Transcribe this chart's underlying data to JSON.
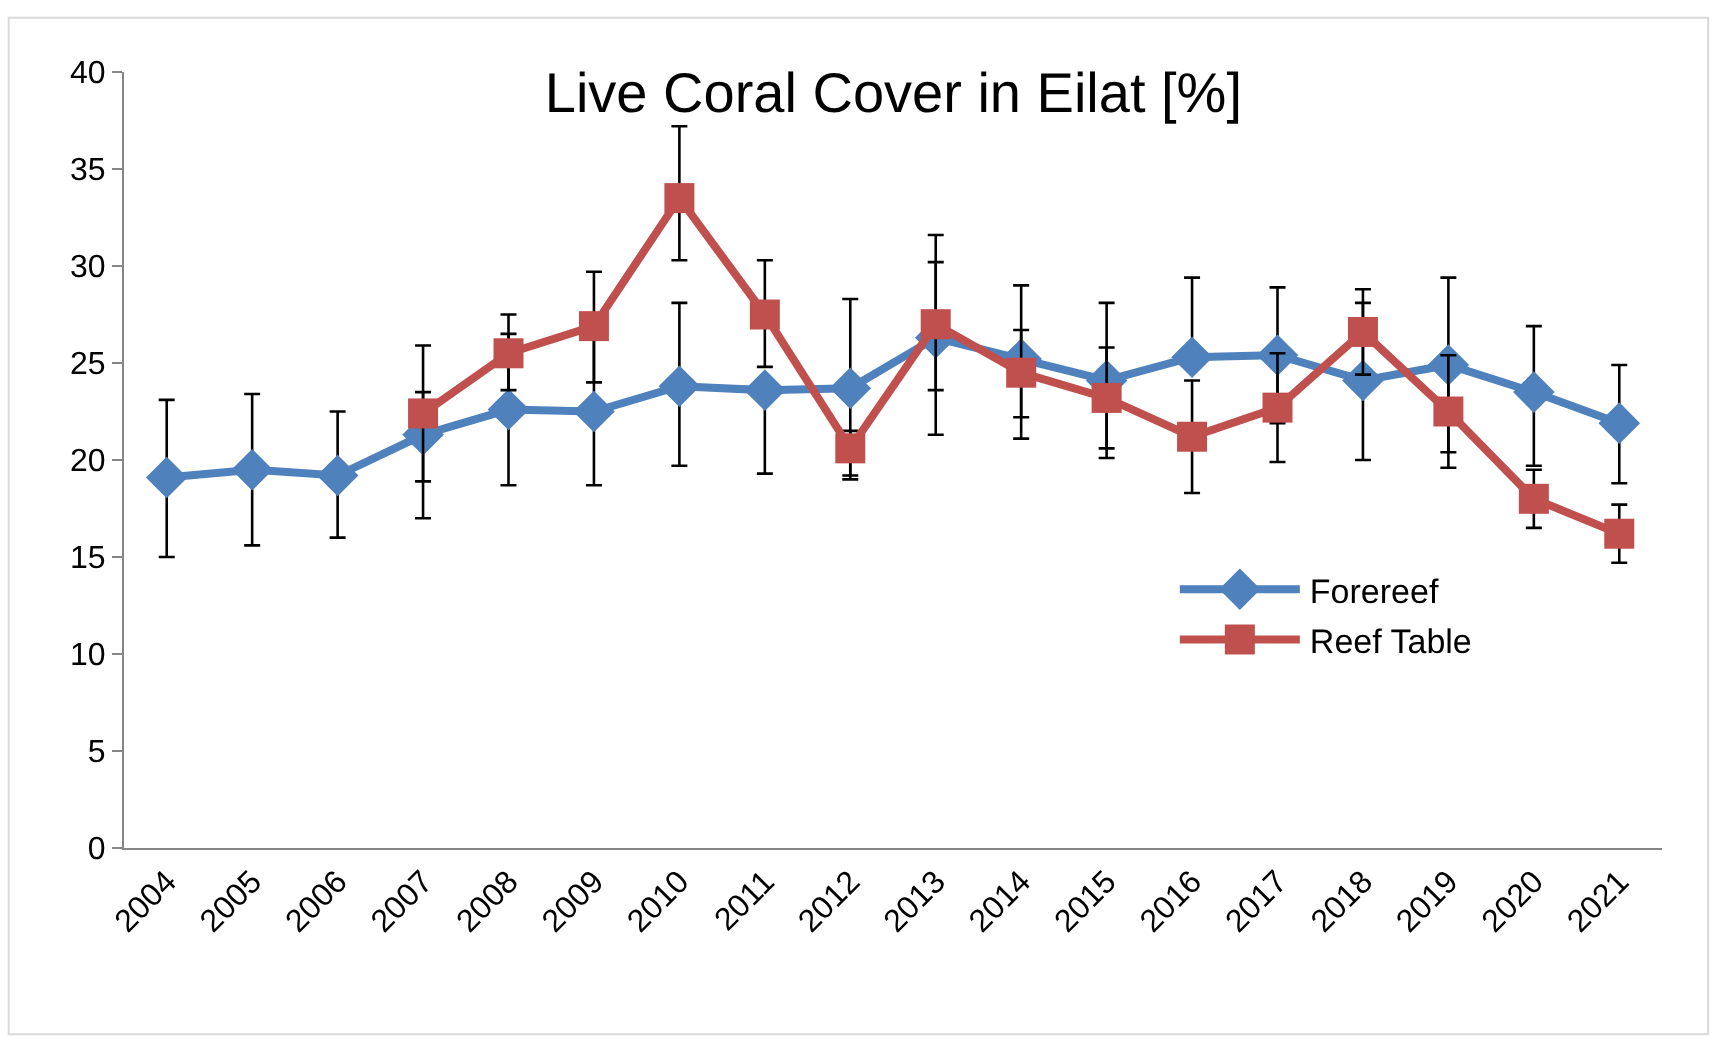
{
  "chart_data": {
    "type": "line",
    "title": "Live Coral Cover in Eilat [%]",
    "categories": [
      "2004",
      "2005",
      "2006",
      "2007",
      "2008",
      "2009",
      "2010",
      "2011",
      "2012",
      "2013",
      "2014",
      "2015",
      "2016",
      "2017",
      "2018",
      "2019",
      "2020",
      "2021"
    ],
    "series": [
      {
        "name": "Forereef",
        "color": "#4f81bd",
        "marker": "diamond",
        "values": [
          19.1,
          19.5,
          19.2,
          21.3,
          22.6,
          22.5,
          23.8,
          23.6,
          23.7,
          26.3,
          25.2,
          24.1,
          25.3,
          25.4,
          24.1,
          24.9,
          23.5,
          21.9
        ],
        "errors": [
          [
            15.0,
            23.1
          ],
          [
            15.6,
            23.4
          ],
          [
            16.0,
            22.5
          ],
          [
            17.0,
            23.5
          ],
          [
            18.7,
            26.5
          ],
          [
            18.7,
            26.3
          ],
          [
            19.7,
            28.1
          ],
          [
            19.3,
            23.6
          ],
          [
            19.2,
            28.3
          ],
          [
            21.3,
            31.6
          ],
          [
            21.1,
            29.0
          ],
          [
            20.1,
            28.1
          ],
          [
            25.3,
            29.4
          ],
          [
            21.9,
            28.9
          ],
          [
            20.0,
            28.1
          ],
          [
            20.4,
            29.4
          ],
          [
            19.7,
            26.9
          ],
          [
            18.8,
            24.9
          ]
        ]
      },
      {
        "name": "Reef Table",
        "color": "#c0504d",
        "marker": "square",
        "values": [
          null,
          null,
          null,
          22.4,
          25.5,
          26.9,
          33.5,
          27.5,
          20.6,
          27.0,
          24.5,
          23.2,
          21.2,
          22.7,
          26.6,
          22.5,
          18.0,
          16.2
        ],
        "errors": [
          null,
          null,
          null,
          [
            18.9,
            25.9
          ],
          [
            23.6,
            27.5
          ],
          [
            24.0,
            29.7
          ],
          [
            30.3,
            37.2
          ],
          [
            24.8,
            30.3
          ],
          [
            19.0,
            21.5
          ],
          [
            23.6,
            30.2
          ],
          [
            22.2,
            26.7
          ],
          [
            20.6,
            25.8
          ],
          [
            18.3,
            24.1
          ],
          [
            19.9,
            25.5
          ],
          [
            24.4,
            28.8
          ],
          [
            19.6,
            25.4
          ],
          [
            16.5,
            19.5
          ],
          [
            14.7,
            17.7
          ]
        ]
      }
    ],
    "ylim": [
      0,
      40
    ],
    "yticks": [
      0,
      5,
      10,
      15,
      20,
      25,
      30,
      35,
      40
    ],
    "legend": "right",
    "line_style": "solid"
  }
}
